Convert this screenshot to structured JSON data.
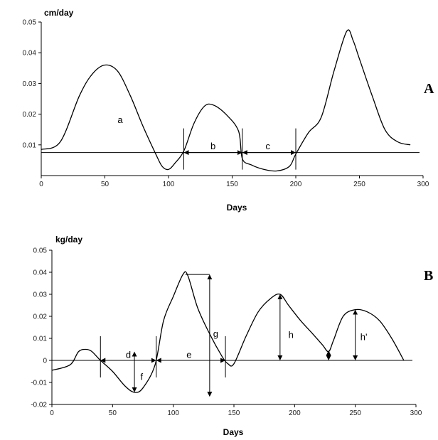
{
  "chart_data": [
    {
      "type": "line",
      "panel_label": "A",
      "ylabel": "cm/day",
      "xlabel": "Days",
      "xlim": [
        0,
        300
      ],
      "ylim": [
        0,
        0.05
      ],
      "x_ticks": [
        "0",
        "50",
        "100",
        "150",
        "200",
        "250",
        "300"
      ],
      "y_ticks": [
        "0.01",
        "0.02",
        "0.03",
        "0.04",
        "0.05"
      ],
      "reference_y": 0.0075,
      "series": [
        {
          "x": [
            0,
            15,
            30,
            40,
            50,
            60,
            70,
            80,
            90,
            95,
            100,
            105,
            112,
            120,
            128,
            135,
            145,
            155,
            158,
            165,
            175,
            185,
            195,
            200,
            210,
            220,
            230,
            240,
            245,
            250,
            260,
            270,
            280,
            290
          ],
          "y": [
            0.0085,
            0.011,
            0.026,
            0.033,
            0.036,
            0.034,
            0.026,
            0.016,
            0.007,
            0.003,
            0.002,
            0.004,
            0.008,
            0.017,
            0.0225,
            0.023,
            0.02,
            0.0145,
            0.0055,
            0.0035,
            0.002,
            0.0015,
            0.003,
            0.007,
            0.014,
            0.019,
            0.034,
            0.047,
            0.044,
            0.038,
            0.026,
            0.015,
            0.011,
            0.01
          ]
        }
      ],
      "markers_x": [
        112,
        158,
        200
      ],
      "annotations": [
        {
          "text": "a",
          "x": 62,
          "y": 0.018
        },
        {
          "text": "b",
          "x": 135,
          "y": 0.0095
        },
        {
          "text": "c",
          "x": 178,
          "y": 0.0095
        }
      ],
      "arrows": [
        {
          "x1": 112,
          "x2": 158,
          "y": 0.0075
        },
        {
          "x1": 158,
          "x2": 200,
          "y": 0.0075
        }
      ]
    },
    {
      "type": "line",
      "panel_label": "B",
      "ylabel": "kg/day",
      "xlabel": "Days",
      "xlim": [
        0,
        300
      ],
      "ylim": [
        -0.02,
        0.05
      ],
      "x_ticks": [
        "0",
        "50",
        "100",
        "150",
        "200",
        "250",
        "300"
      ],
      "y_ticks": [
        "-0.02",
        "-0.01",
        "0",
        "0.01",
        "0.02",
        "0.03",
        "0.04",
        "0.05"
      ],
      "reference_y": 0,
      "series": [
        {
          "x": [
            0,
            15,
            22,
            28,
            33,
            40,
            50,
            60,
            68,
            75,
            85,
            92,
            100,
            108,
            112,
            120,
            130,
            140,
            145,
            150,
            160,
            170,
            180,
            188,
            195,
            205,
            215,
            223,
            228,
            232,
            240,
            250,
            260,
            270,
            280,
            290
          ],
          "y": [
            -0.0045,
            -0.002,
            0.004,
            0.005,
            0.004,
            0.0,
            -0.005,
            -0.0115,
            -0.0145,
            -0.0125,
            -0.002,
            0.018,
            0.029,
            0.039,
            0.0385,
            0.024,
            0.012,
            0.002,
            -0.0015,
            -0.0015,
            0.011,
            0.022,
            0.028,
            0.03,
            0.025,
            0.018,
            0.012,
            0.007,
            0.004,
            0.009,
            0.02,
            0.023,
            0.022,
            0.018,
            0.01,
            0.0
          ]
        }
      ],
      "markers_x": [
        40,
        86,
        143
      ],
      "annotations": [
        {
          "text": "d",
          "x": 63,
          "y": 0.0025
        },
        {
          "text": "e",
          "x": 113,
          "y": 0.0025
        },
        {
          "text": "f",
          "x": 74,
          "y": -0.0075
        },
        {
          "text": "g",
          "x": 135,
          "y": 0.012
        },
        {
          "text": "h",
          "x": 197,
          "y": 0.0115
        },
        {
          "text": "h'",
          "x": 257,
          "y": 0.0105
        }
      ],
      "arrows": [
        {
          "x1": 40,
          "x2": 86,
          "y": 0.0
        },
        {
          "x1": 86,
          "x2": 143,
          "y": 0.0
        }
      ],
      "vertical_arrows": [
        {
          "x": 68,
          "y1": -0.0145,
          "y2": 0.004
        },
        {
          "x": 130,
          "y1": -0.0165,
          "y2": 0.039
        },
        {
          "x": 188,
          "y1": 0.0,
          "y2": 0.03
        },
        {
          "x": 228,
          "y1": 0.0,
          "y2": 0.0045
        },
        {
          "x": 250,
          "y1": 0.0,
          "y2": 0.023
        }
      ],
      "horizontal_guides": [
        {
          "x1": 110,
          "x2": 130,
          "y": 0.039
        }
      ]
    }
  ]
}
